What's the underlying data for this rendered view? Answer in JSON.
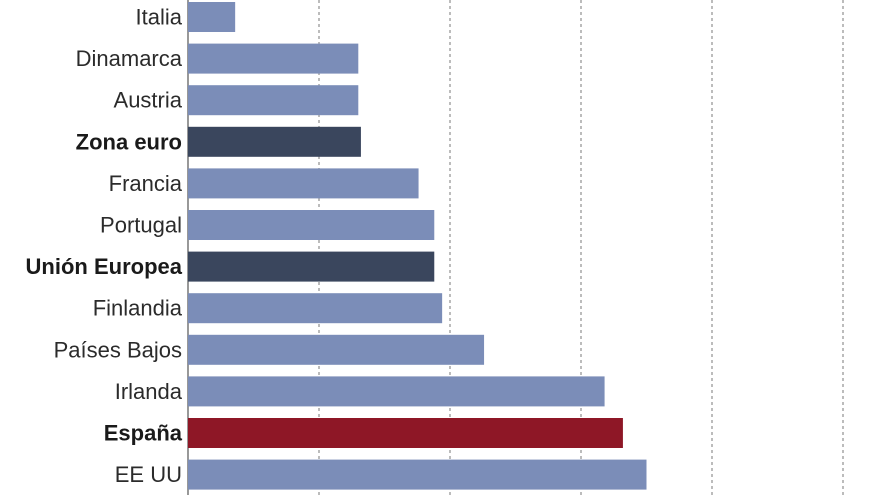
{
  "chart_data": {
    "type": "bar",
    "orientation": "horizontal",
    "title": "",
    "xlabel": "",
    "ylabel": "",
    "categories": [
      "Italia",
      "Dinamarca",
      "Austria",
      "Zona euro",
      "Francia",
      "Portugal",
      "Unión Europea",
      "Finlandia",
      "Países Bajos",
      "Irlanda",
      "España",
      "EE UU"
    ],
    "values": [
      0.18,
      0.65,
      0.65,
      0.66,
      0.88,
      0.94,
      0.94,
      0.97,
      1.13,
      1.59,
      1.66,
      1.75
    ],
    "highlight": [
      "normal",
      "normal",
      "normal",
      "aggregate",
      "normal",
      "normal",
      "aggregate",
      "normal",
      "normal",
      "normal",
      "focus",
      "normal"
    ],
    "xlim": [
      0,
      2.6
    ],
    "grid": true,
    "legend": "none",
    "colors": {
      "normal": "#7b8db8",
      "aggregate": "#3a465d",
      "focus": "#8e1726"
    }
  }
}
